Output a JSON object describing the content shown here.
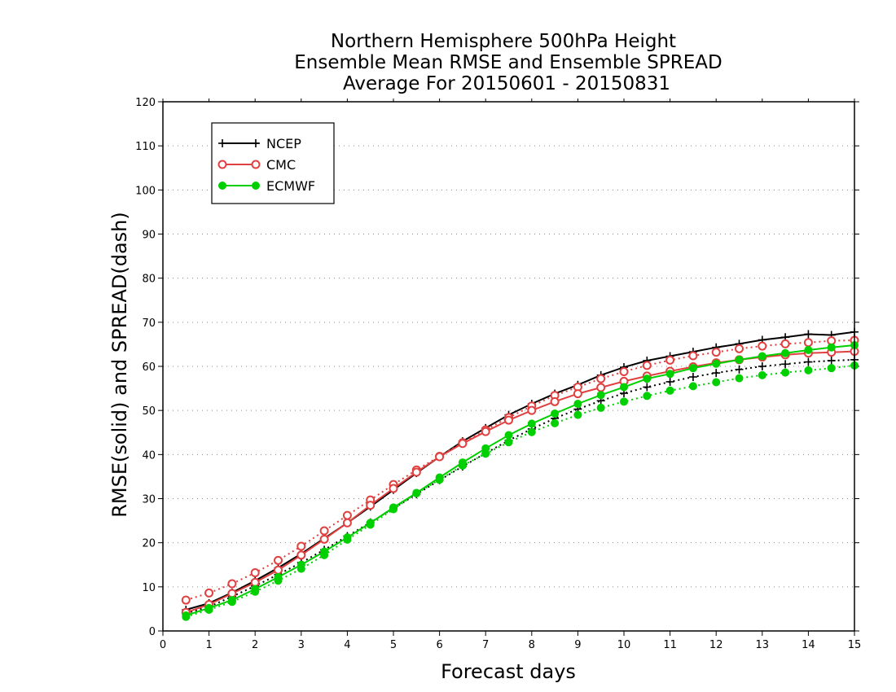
{
  "chart_data": {
    "type": "line",
    "title_lines": [
      "Northern Hemisphere 500hPa Height",
      "Ensemble Mean RMSE and Ensemble SPREAD",
      "Average For 20150601 - 20150831"
    ],
    "xlabel": "Forecast days",
    "ylabel": "RMSE(solid) and SPREAD(dash)",
    "xlim": [
      0,
      15
    ],
    "ylim": [
      0,
      120
    ],
    "xticks": [
      0,
      1,
      2,
      3,
      4,
      5,
      6,
      7,
      8,
      9,
      10,
      11,
      12,
      13,
      14,
      15
    ],
    "yticks": [
      0,
      10,
      20,
      30,
      40,
      50,
      60,
      70,
      80,
      90,
      100,
      110,
      120
    ],
    "grid": true,
    "legend_position": "top-left",
    "x": [
      0.5,
      1.0,
      1.5,
      2.0,
      2.5,
      3.0,
      3.5,
      4.0,
      4.5,
      5.0,
      5.5,
      6.0,
      6.5,
      7.0,
      7.5,
      8.0,
      8.5,
      9.0,
      9.5,
      10.0,
      10.5,
      11.0,
      11.5,
      12.0,
      12.5,
      13.0,
      13.5,
      14.0,
      14.5,
      15.0
    ],
    "series": [
      {
        "name": "NCEP",
        "color": "#000000",
        "marker": "plus",
        "rmse": [
          4.8,
          6.3,
          8.7,
          11.4,
          14.3,
          17.5,
          21.0,
          24.5,
          28.2,
          32.0,
          35.8,
          39.5,
          43.0,
          46.0,
          49.0,
          51.5,
          53.8,
          55.8,
          58.0,
          59.8,
          61.3,
          62.3,
          63.3,
          64.3,
          65.1,
          66.0,
          66.6,
          67.3,
          67.1,
          67.8
        ],
        "spread": [
          4.0,
          5.5,
          7.8,
          10.2,
          12.8,
          15.5,
          18.4,
          21.5,
          24.6,
          27.8,
          31.0,
          34.2,
          37.3,
          40.3,
          43.2,
          45.8,
          48.2,
          50.3,
          52.2,
          53.9,
          55.3,
          56.5,
          57.6,
          58.5,
          59.3,
          60.0,
          60.5,
          61.0,
          61.3,
          61.5
        ]
      },
      {
        "name": "CMC",
        "color": "#e04040",
        "marker": "open-circle",
        "rmse": [
          4.2,
          6.0,
          8.5,
          11.0,
          13.8,
          17.2,
          20.8,
          24.5,
          28.5,
          32.3,
          36.0,
          39.5,
          42.5,
          45.2,
          47.8,
          50.0,
          52.0,
          53.8,
          55.2,
          56.6,
          57.8,
          58.9,
          59.9,
          60.8,
          61.5,
          62.1,
          62.6,
          63.0,
          63.2,
          63.4
        ],
        "spread": [
          7.0,
          8.6,
          10.7,
          13.2,
          16.0,
          19.2,
          22.7,
          26.2,
          29.7,
          33.2,
          36.5,
          39.6,
          42.7,
          45.6,
          48.4,
          51.0,
          53.4,
          55.3,
          57.2,
          58.8,
          60.2,
          61.4,
          62.4,
          63.2,
          64.0,
          64.6,
          65.1,
          65.4,
          65.8,
          65.9
        ]
      },
      {
        "name": "ECMWF",
        "color": "#00d000",
        "marker": "filled-circle",
        "rmse": [
          3.5,
          5.2,
          7.0,
          9.5,
          12.2,
          15.0,
          18.0,
          21.2,
          24.5,
          28.0,
          31.3,
          34.8,
          38.2,
          41.4,
          44.4,
          47.0,
          49.3,
          51.5,
          53.5,
          55.3,
          57.2,
          58.3,
          59.6,
          60.6,
          61.5,
          62.3,
          63.0,
          63.7,
          64.3,
          64.8
        ],
        "spread": [
          3.2,
          4.8,
          6.6,
          8.9,
          11.4,
          14.1,
          17.2,
          20.7,
          24.1,
          27.6,
          31.2,
          34.3,
          37.5,
          40.2,
          42.8,
          45.1,
          47.1,
          49.0,
          50.6,
          52.0,
          53.3,
          54.5,
          55.5,
          56.4,
          57.3,
          58.0,
          58.6,
          59.1,
          59.6,
          60.2
        ]
      }
    ]
  }
}
